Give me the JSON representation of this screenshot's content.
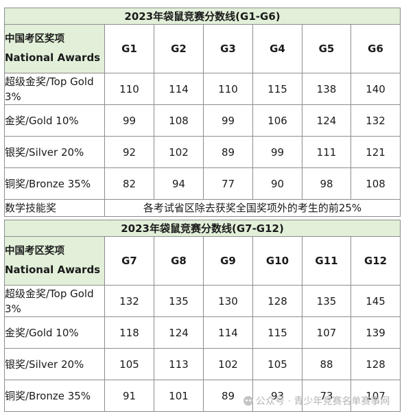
{
  "tables": [
    {
      "title": "2023年袋鼠竞赛分数线(G1-G6)",
      "header": {
        "zh": "中国考区奖项",
        "en": "National Awards"
      },
      "grades": [
        "G1",
        "G2",
        "G3",
        "G4",
        "G5",
        "G6"
      ],
      "rows": [
        {
          "label": "超级金奖/Top Gold 3%",
          "values": [
            "110",
            "114",
            "110",
            "115",
            "138",
            "140"
          ]
        },
        {
          "label": "金奖/Gold 10%",
          "values": [
            "99",
            "108",
            "99",
            "106",
            "124",
            "132"
          ]
        },
        {
          "label": "银奖/Silver 20%",
          "values": [
            "92",
            "102",
            "89",
            "99",
            "111",
            "121"
          ]
        },
        {
          "label": "铜奖/Bronze 35%",
          "values": [
            "82",
            "94",
            "77",
            "90",
            "98",
            "108"
          ]
        }
      ],
      "note": {
        "label": "数学技能奖",
        "text": "各考试省区除去获奖全国奖项外的考生的前25%"
      }
    },
    {
      "title": "2023年袋鼠竞赛分数线(G7-G12)",
      "header": {
        "zh": "中国考区奖项",
        "en": "National Awards"
      },
      "grades": [
        "G7",
        "G8",
        "G9",
        "G10",
        "G11",
        "G12"
      ],
      "rows": [
        {
          "label": "超级金奖/Top Gold 3%",
          "values": [
            "132",
            "135",
            "130",
            "128",
            "135",
            "145"
          ]
        },
        {
          "label": "金奖/Gold 10%",
          "values": [
            "118",
            "124",
            "114",
            "115",
            "107",
            "139"
          ]
        },
        {
          "label": "银奖/Silver 20%",
          "values": [
            "105",
            "113",
            "102",
            "105",
            "88",
            "128"
          ]
        },
        {
          "label": "铜奖/Bronze 35%",
          "values": [
            "91",
            "101",
            "89",
            "93",
            "73",
            "107"
          ]
        }
      ]
    }
  ],
  "watermark": {
    "text": "公众号 · 青少年竞赛名单赛事网",
    "icon": "wechat-icon"
  }
}
